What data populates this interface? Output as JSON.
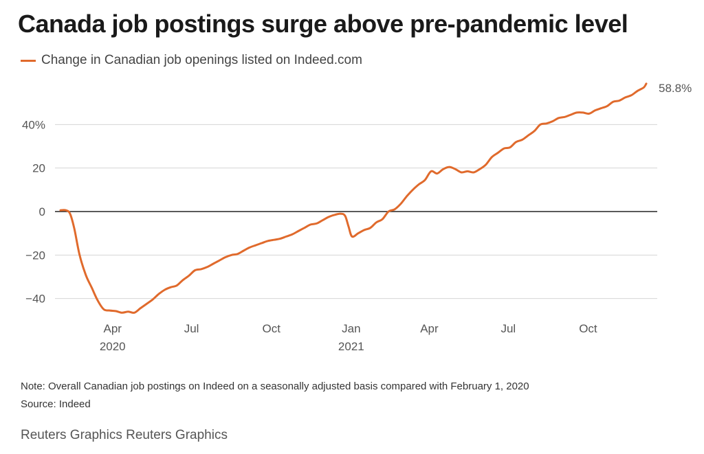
{
  "chart_data": {
    "type": "line",
    "title": "Canada job postings surge above pre-pandemic level",
    "legend_position": "top-left",
    "grid": true,
    "series": [
      {
        "name": "Change in Canadian job openings listed on Indeed.com",
        "color": "#e06a2c",
        "end_label": "58.8%",
        "points": [
          [
            "2020-02-01",
            0.6
          ],
          [
            "2020-02-07",
            0.6
          ],
          [
            "2020-02-12",
            -1.0
          ],
          [
            "2020-02-17",
            -8.0
          ],
          [
            "2020-02-23",
            -20.0
          ],
          [
            "2020-03-01",
            -29.0
          ],
          [
            "2020-03-08",
            -35.0
          ],
          [
            "2020-03-15",
            -41.0
          ],
          [
            "2020-03-22",
            -45.0
          ],
          [
            "2020-03-29",
            -45.5
          ],
          [
            "2020-04-05",
            -45.8
          ],
          [
            "2020-04-12",
            -46.5
          ],
          [
            "2020-04-19",
            -46.0
          ],
          [
            "2020-04-26",
            -46.5
          ],
          [
            "2020-05-03",
            -44.5
          ],
          [
            "2020-05-10",
            -42.5
          ],
          [
            "2020-05-17",
            -40.5
          ],
          [
            "2020-05-24",
            -38.0
          ],
          [
            "2020-05-31",
            -36.0
          ],
          [
            "2020-06-07",
            -34.8
          ],
          [
            "2020-06-14",
            -34.0
          ],
          [
            "2020-06-21",
            -31.5
          ],
          [
            "2020-06-28",
            -29.5
          ],
          [
            "2020-07-05",
            -27.0
          ],
          [
            "2020-07-12",
            -26.5
          ],
          [
            "2020-07-19",
            -25.5
          ],
          [
            "2020-07-26",
            -24.0
          ],
          [
            "2020-08-02",
            -22.5
          ],
          [
            "2020-08-09",
            -21.0
          ],
          [
            "2020-08-16",
            -20.0
          ],
          [
            "2020-08-23",
            -19.5
          ],
          [
            "2020-08-30",
            -18.0
          ],
          [
            "2020-09-06",
            -16.5
          ],
          [
            "2020-09-13",
            -15.5
          ],
          [
            "2020-09-20",
            -14.5
          ],
          [
            "2020-09-27",
            -13.5
          ],
          [
            "2020-10-04",
            -13.0
          ],
          [
            "2020-10-11",
            -12.5
          ],
          [
            "2020-10-18",
            -11.5
          ],
          [
            "2020-10-25",
            -10.5
          ],
          [
            "2020-11-01",
            -9.0
          ],
          [
            "2020-11-08",
            -7.5
          ],
          [
            "2020-11-15",
            -6.0
          ],
          [
            "2020-11-22",
            -5.5
          ],
          [
            "2020-11-29",
            -4.0
          ],
          [
            "2020-12-06",
            -2.5
          ],
          [
            "2020-12-13",
            -1.5
          ],
          [
            "2020-12-20",
            -1.0
          ],
          [
            "2020-12-25",
            -2.0
          ],
          [
            "2020-12-29",
            -7.0
          ],
          [
            "2021-01-02",
            -11.5
          ],
          [
            "2021-01-09",
            -10.0
          ],
          [
            "2021-01-16",
            -8.5
          ],
          [
            "2021-01-23",
            -7.5
          ],
          [
            "2021-01-30",
            -5.0
          ],
          [
            "2021-02-06",
            -3.5
          ],
          [
            "2021-02-13",
            0.0
          ],
          [
            "2021-02-20",
            1.0
          ],
          [
            "2021-02-27",
            3.5
          ],
          [
            "2021-03-06",
            7.0
          ],
          [
            "2021-03-13",
            10.0
          ],
          [
            "2021-03-20",
            12.5
          ],
          [
            "2021-03-27",
            14.5
          ],
          [
            "2021-04-03",
            18.5
          ],
          [
            "2021-04-10",
            17.5
          ],
          [
            "2021-04-17",
            19.5
          ],
          [
            "2021-04-24",
            20.5
          ],
          [
            "2021-05-01",
            19.5
          ],
          [
            "2021-05-08",
            18.0
          ],
          [
            "2021-05-15",
            18.5
          ],
          [
            "2021-05-22",
            18.0
          ],
          [
            "2021-05-29",
            19.5
          ],
          [
            "2021-06-05",
            21.5
          ],
          [
            "2021-06-12",
            25.0
          ],
          [
            "2021-06-19",
            27.0
          ],
          [
            "2021-06-26",
            29.0
          ],
          [
            "2021-07-03",
            29.5
          ],
          [
            "2021-07-10",
            32.0
          ],
          [
            "2021-07-17",
            33.0
          ],
          [
            "2021-07-24",
            35.0
          ],
          [
            "2021-07-31",
            37.0
          ],
          [
            "2021-08-07",
            40.0
          ],
          [
            "2021-08-14",
            40.5
          ],
          [
            "2021-08-21",
            41.5
          ],
          [
            "2021-08-28",
            43.0
          ],
          [
            "2021-09-04",
            43.5
          ],
          [
            "2021-09-11",
            44.5
          ],
          [
            "2021-09-18",
            45.5
          ],
          [
            "2021-09-25",
            45.5
          ],
          [
            "2021-10-02",
            45.0
          ],
          [
            "2021-10-09",
            46.5
          ],
          [
            "2021-10-16",
            47.5
          ],
          [
            "2021-10-23",
            48.5
          ],
          [
            "2021-10-30",
            50.5
          ],
          [
            "2021-11-06",
            51.0
          ],
          [
            "2021-11-13",
            52.5
          ],
          [
            "2021-11-20",
            53.5
          ],
          [
            "2021-11-27",
            55.5
          ],
          [
            "2021-12-04",
            57.0
          ],
          [
            "2021-12-07",
            58.8
          ]
        ]
      }
    ],
    "x_axis": {
      "range": [
        "2020-02-01",
        "2021-12-07"
      ],
      "ticks": [
        {
          "date": "2020-04-01",
          "label": "Apr",
          "sublabel": "2020"
        },
        {
          "date": "2020-07-01",
          "label": "Jul",
          "sublabel": ""
        },
        {
          "date": "2020-10-01",
          "label": "Oct",
          "sublabel": ""
        },
        {
          "date": "2021-01-01",
          "label": "Jan",
          "sublabel": "2021"
        },
        {
          "date": "2021-04-01",
          "label": "Apr",
          "sublabel": ""
        },
        {
          "date": "2021-07-01",
          "label": "Jul",
          "sublabel": ""
        },
        {
          "date": "2021-10-01",
          "label": "Oct",
          "sublabel": ""
        }
      ]
    },
    "y_axis": {
      "range": [
        -48,
        60
      ],
      "ticks": [
        {
          "value": 40,
          "label": "40%"
        },
        {
          "value": 20,
          "label": "20"
        },
        {
          "value": 0,
          "label": "0"
        },
        {
          "value": -20,
          "label": "−20"
        },
        {
          "value": -40,
          "label": "−40"
        }
      ]
    }
  },
  "note": "Note: Overall Canadian job postings on Indeed on a seasonally adjusted basis compared with February 1, 2020",
  "source": "Source: Indeed",
  "credit": "Reuters Graphics Reuters Graphics"
}
